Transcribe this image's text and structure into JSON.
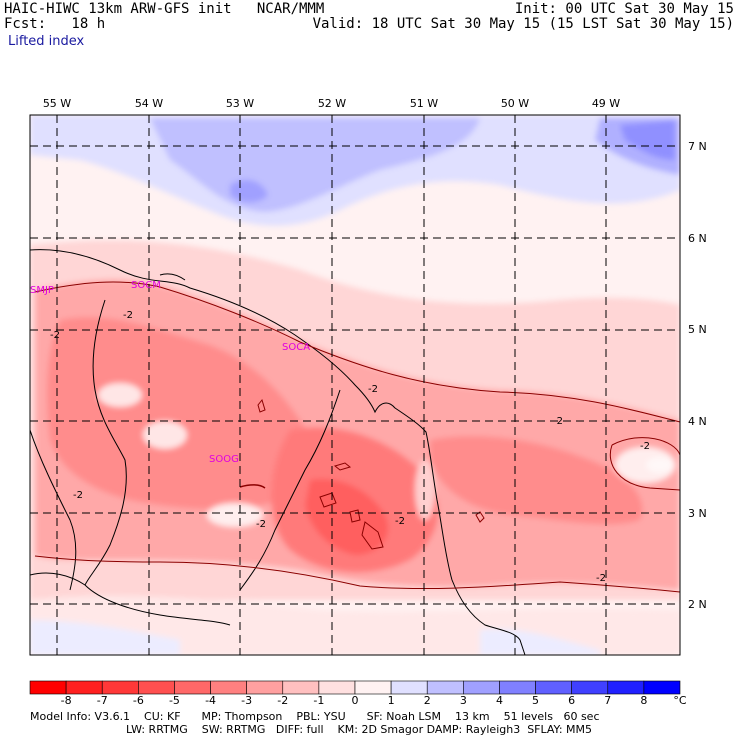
{
  "header": {
    "title_left": "HAIC-HIWC 13km ARW-GFS init   NCAR/MMM",
    "init": "Init: 00 UTC Sat 30 May 15",
    "fcst": "Fcst:   18 h",
    "valid": "Valid: 18 UTC Sat 30 May 15 (15 LST Sat 30 May 15)",
    "field": "Lifted index"
  },
  "axes": {
    "longitudes": [
      "55 W",
      "54 W",
      "53 W",
      "52 W",
      "51 W",
      "50 W",
      "49 W"
    ],
    "latitudes": [
      "7 N",
      "6 N",
      "5 N",
      "4 N",
      "3 N",
      "2 N"
    ]
  },
  "stations": [
    "SMJP",
    "SOCM",
    "SOCA",
    "SOOG"
  ],
  "contour_labels": [
    "-2",
    "-2",
    "-2",
    "-2",
    "-2",
    "-2",
    "-2",
    "-2",
    "-2",
    "-2"
  ],
  "colorbar": {
    "ticks": [
      "-8",
      "-7",
      "-6",
      "-5",
      "-4",
      "-3",
      "-2",
      "-1",
      "0",
      "1",
      "2",
      "3",
      "4",
      "5",
      "6",
      "7",
      "8"
    ],
    "unit": "°C",
    "colors": [
      "#ff0000",
      "#ff2020",
      "#ff3838",
      "#ff5050",
      "#ff6868",
      "#ff8080",
      "#ffa0a0",
      "#ffc0c0",
      "#ffe0e0",
      "#fff2f2",
      "#e0e0ff",
      "#c0c0ff",
      "#a0a0ff",
      "#8080ff",
      "#6060ff",
      "#4040ff",
      "#2020ff",
      "#0000ff"
    ]
  },
  "model_info": {
    "line1": "Model Info: V3.6.1    CU: KF      MP: Thompson    PBL: YSU      SF: Noah LSM    13 km    51 levels   60 sec",
    "line2": "LW: RRTMG    SW: RRTMG   DIFF: full    KM: 2D Smagor DAMP: Rayleigh3  SFLAY: MM5"
  }
}
